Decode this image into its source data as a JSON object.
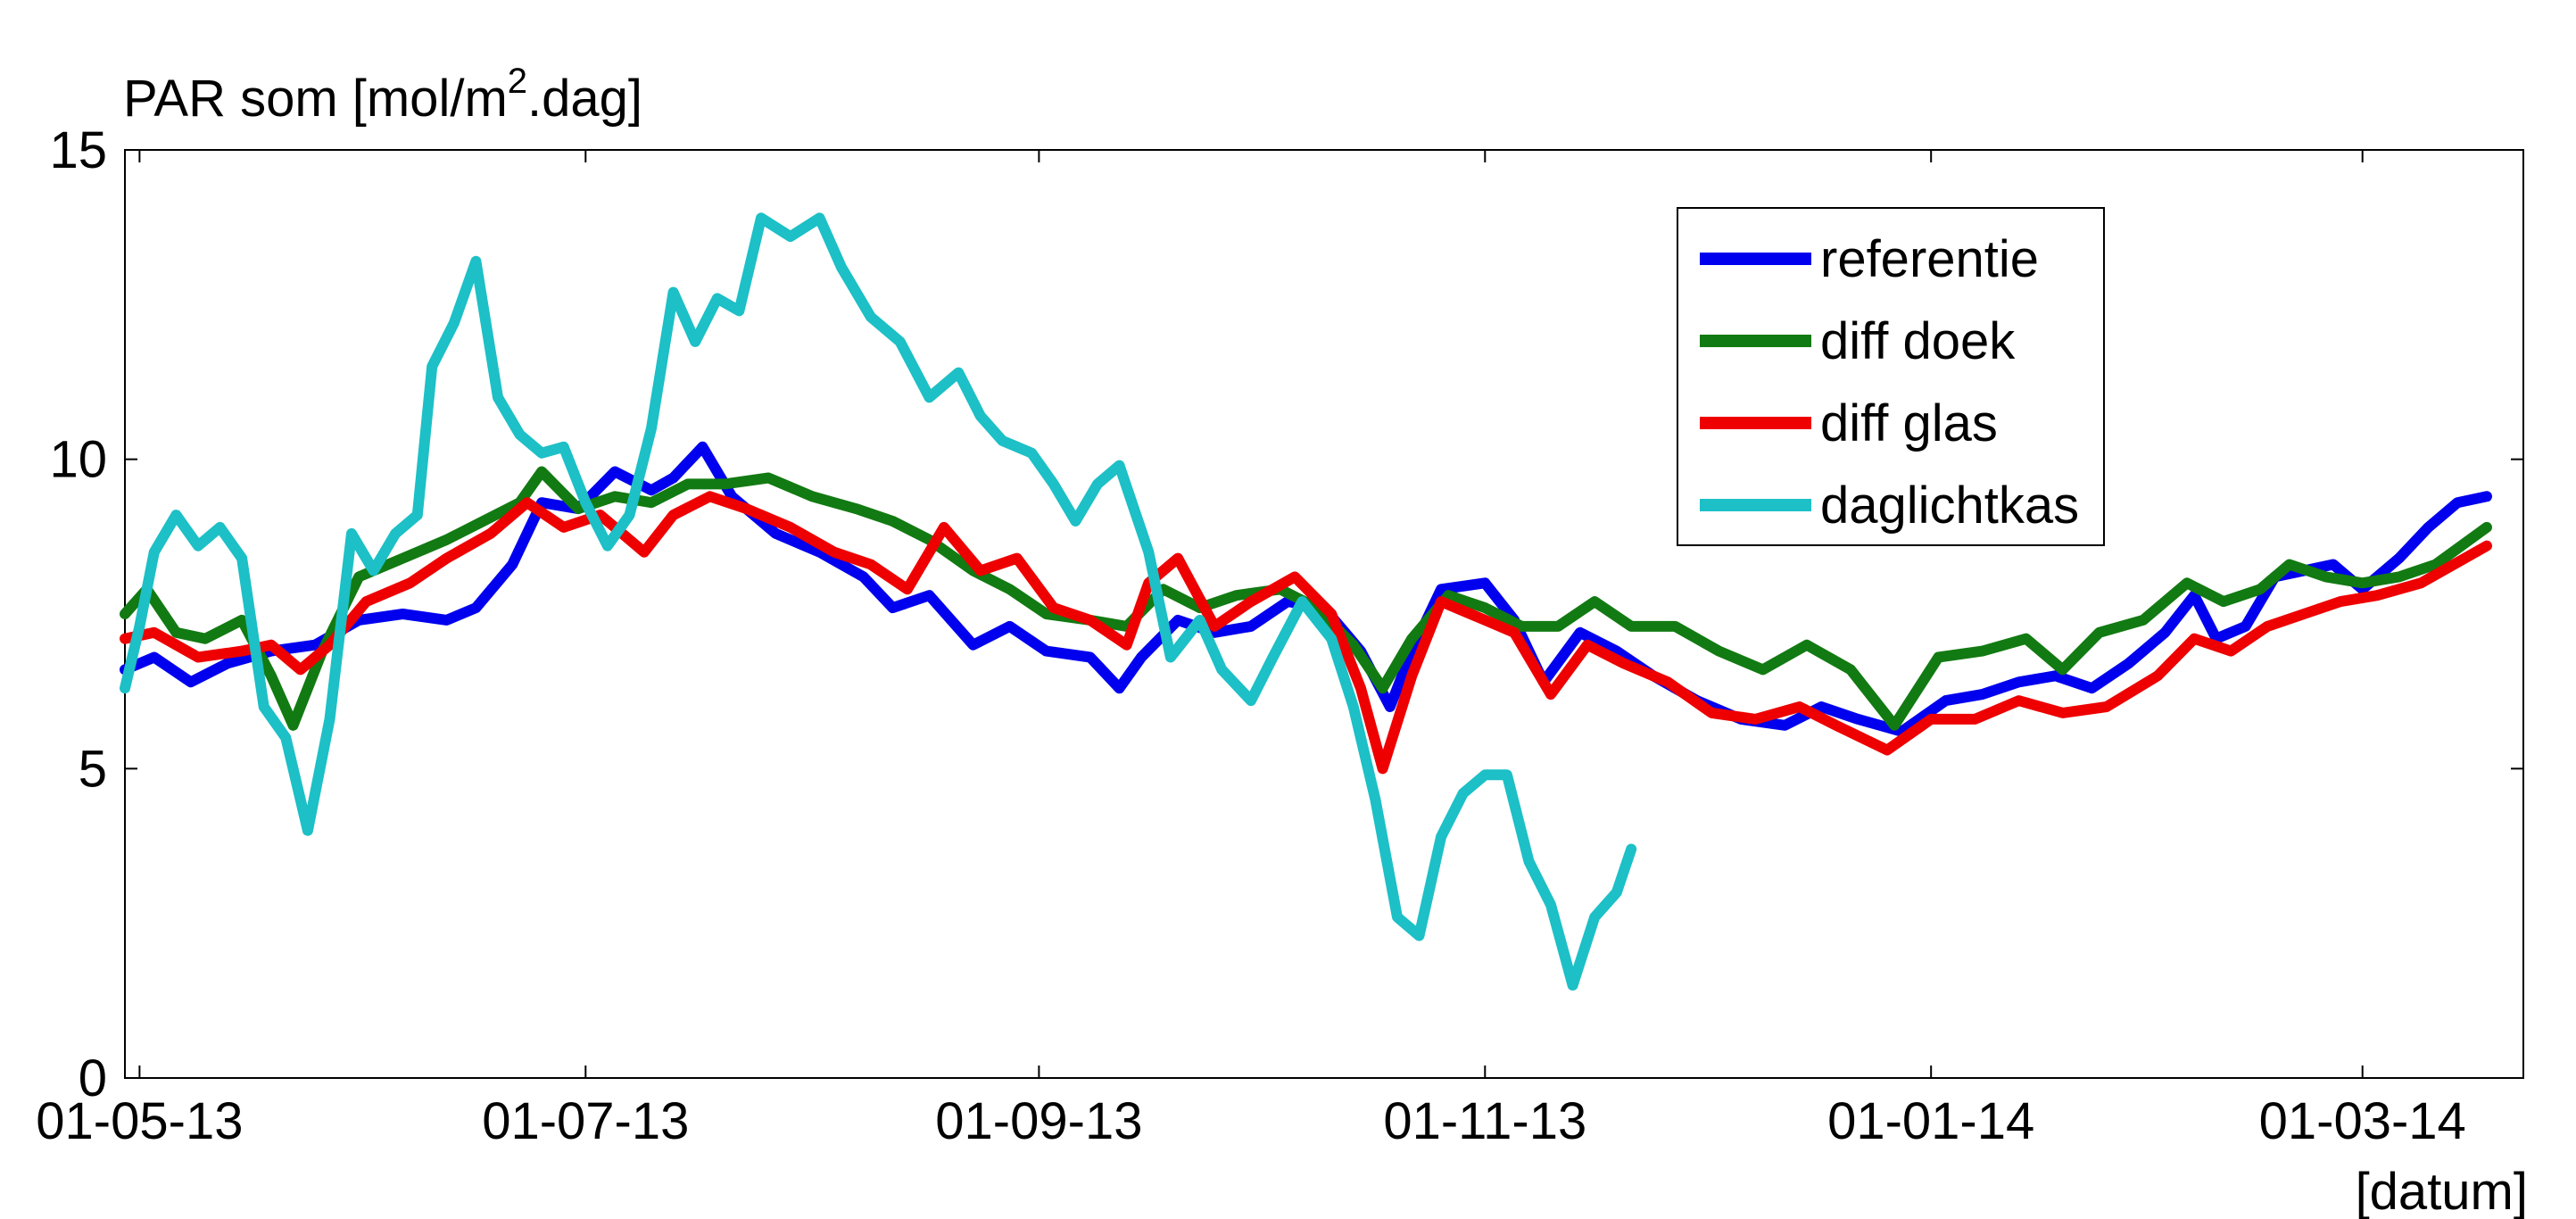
{
  "chart_data": {
    "type": "line",
    "ylabel_main": "PAR som [mol/m",
    "ylabel_sup": "2",
    "ylabel_tail": ".dag]",
    "xlabel": "[datum]",
    "ylim": [
      0,
      15
    ],
    "xlim": [
      "2013-04-29",
      "2014-03-23"
    ],
    "yticks": [
      "0",
      "5",
      "10",
      "15"
    ],
    "xticks": [
      {
        "label": "01-05-13",
        "date": "2013-05-01"
      },
      {
        "label": "01-07-13",
        "date": "2013-07-01"
      },
      {
        "label": "01-09-13",
        "date": "2013-09-01"
      },
      {
        "label": "01-11-13",
        "date": "2013-11-01"
      },
      {
        "label": "01-01-14",
        "date": "2014-01-01"
      },
      {
        "label": "01-03-14",
        "date": "2014-03-01"
      }
    ],
    "legend_position": "top-right",
    "series": [
      {
        "name": "referentie",
        "color": "#0000ee",
        "points": [
          [
            "2013-04-29",
            6.6
          ],
          [
            "2013-05-03",
            6.8
          ],
          [
            "2013-05-08",
            6.4
          ],
          [
            "2013-05-13",
            6.7
          ],
          [
            "2013-05-19",
            6.9
          ],
          [
            "2013-05-25",
            7.0
          ],
          [
            "2013-05-31",
            7.4
          ],
          [
            "2013-06-06",
            7.5
          ],
          [
            "2013-06-12",
            7.4
          ],
          [
            "2013-06-16",
            7.6
          ],
          [
            "2013-06-21",
            8.3
          ],
          [
            "2013-06-25",
            9.3
          ],
          [
            "2013-06-30",
            9.2
          ],
          [
            "2013-07-05",
            9.8
          ],
          [
            "2013-07-10",
            9.5
          ],
          [
            "2013-07-13",
            9.7
          ],
          [
            "2013-07-17",
            10.2
          ],
          [
            "2013-07-21",
            9.4
          ],
          [
            "2013-07-27",
            8.8
          ],
          [
            "2013-08-02",
            8.5
          ],
          [
            "2013-08-08",
            8.1
          ],
          [
            "2013-08-12",
            7.6
          ],
          [
            "2013-08-17",
            7.8
          ],
          [
            "2013-08-23",
            7.0
          ],
          [
            "2013-08-28",
            7.3
          ],
          [
            "2013-09-02",
            6.9
          ],
          [
            "2013-09-08",
            6.8
          ],
          [
            "2013-09-12",
            6.3
          ],
          [
            "2013-09-15",
            6.8
          ],
          [
            "2013-09-20",
            7.4
          ],
          [
            "2013-09-25",
            7.2
          ],
          [
            "2013-09-30",
            7.3
          ],
          [
            "2013-10-05",
            7.7
          ],
          [
            "2013-10-10",
            7.6
          ],
          [
            "2013-10-15",
            6.9
          ],
          [
            "2013-10-19",
            6.0
          ],
          [
            "2013-10-22",
            6.9
          ],
          [
            "2013-10-26",
            7.9
          ],
          [
            "2013-11-01",
            8.0
          ],
          [
            "2013-11-05",
            7.4
          ],
          [
            "2013-11-09",
            6.4
          ],
          [
            "2013-11-14",
            7.2
          ],
          [
            "2013-11-19",
            6.9
          ],
          [
            "2013-11-24",
            6.5
          ],
          [
            "2013-11-30",
            6.1
          ],
          [
            "2013-12-06",
            5.8
          ],
          [
            "2013-12-12",
            5.7
          ],
          [
            "2013-12-17",
            6.0
          ],
          [
            "2013-12-22",
            5.8
          ],
          [
            "2013-12-28",
            5.6
          ],
          [
            "2014-01-03",
            6.1
          ],
          [
            "2014-01-08",
            6.2
          ],
          [
            "2014-01-13",
            6.4
          ],
          [
            "2014-01-18",
            6.5
          ],
          [
            "2014-01-23",
            6.3
          ],
          [
            "2014-01-28",
            6.7
          ],
          [
            "2014-02-02",
            7.2
          ],
          [
            "2014-02-06",
            7.8
          ],
          [
            "2014-02-09",
            7.1
          ],
          [
            "2014-02-13",
            7.3
          ],
          [
            "2014-02-17",
            8.1
          ],
          [
            "2014-02-21",
            8.2
          ],
          [
            "2014-02-25",
            8.3
          ],
          [
            "2014-03-01",
            7.9
          ],
          [
            "2014-03-06",
            8.4
          ],
          [
            "2014-03-10",
            8.9
          ],
          [
            "2014-03-14",
            9.3
          ],
          [
            "2014-03-18",
            9.4
          ]
        ]
      },
      {
        "name": "diff doek",
        "color": "#127a12",
        "points": [
          [
            "2013-04-29",
            7.5
          ],
          [
            "2013-05-02",
            7.9
          ],
          [
            "2013-05-06",
            7.2
          ],
          [
            "2013-05-10",
            7.1
          ],
          [
            "2013-05-15",
            7.4
          ],
          [
            "2013-05-19",
            6.5
          ],
          [
            "2013-05-22",
            5.7
          ],
          [
            "2013-05-26",
            6.9
          ],
          [
            "2013-05-31",
            8.1
          ],
          [
            "2013-06-06",
            8.4
          ],
          [
            "2013-06-12",
            8.7
          ],
          [
            "2013-06-17",
            9.0
          ],
          [
            "2013-06-22",
            9.3
          ],
          [
            "2013-06-25",
            9.8
          ],
          [
            "2013-06-30",
            9.2
          ],
          [
            "2013-07-05",
            9.4
          ],
          [
            "2013-07-10",
            9.3
          ],
          [
            "2013-07-15",
            9.6
          ],
          [
            "2013-07-20",
            9.6
          ],
          [
            "2013-07-26",
            9.7
          ],
          [
            "2013-08-01",
            9.4
          ],
          [
            "2013-08-07",
            9.2
          ],
          [
            "2013-08-12",
            9.0
          ],
          [
            "2013-08-17",
            8.7
          ],
          [
            "2013-08-23",
            8.2
          ],
          [
            "2013-08-28",
            7.9
          ],
          [
            "2013-09-02",
            7.5
          ],
          [
            "2013-09-08",
            7.4
          ],
          [
            "2013-09-13",
            7.3
          ],
          [
            "2013-09-18",
            7.9
          ],
          [
            "2013-09-23",
            7.6
          ],
          [
            "2013-09-28",
            7.8
          ],
          [
            "2013-10-04",
            7.9
          ],
          [
            "2013-10-09",
            7.6
          ],
          [
            "2013-10-14",
            7.0
          ],
          [
            "2013-10-18",
            6.3
          ],
          [
            "2013-10-22",
            7.1
          ],
          [
            "2013-10-27",
            7.8
          ],
          [
            "2013-11-01",
            7.6
          ],
          [
            "2013-11-06",
            7.3
          ],
          [
            "2013-11-11",
            7.3
          ],
          [
            "2013-11-16",
            7.7
          ],
          [
            "2013-11-21",
            7.3
          ],
          [
            "2013-11-27",
            7.3
          ],
          [
            "2013-12-03",
            6.9
          ],
          [
            "2013-12-09",
            6.6
          ],
          [
            "2013-12-15",
            7.0
          ],
          [
            "2013-12-21",
            6.6
          ],
          [
            "2013-12-27",
            5.7
          ],
          [
            "2014-01-02",
            6.8
          ],
          [
            "2014-01-08",
            6.9
          ],
          [
            "2014-01-14",
            7.1
          ],
          [
            "2014-01-19",
            6.6
          ],
          [
            "2014-01-24",
            7.2
          ],
          [
            "2014-01-30",
            7.4
          ],
          [
            "2014-02-05",
            8.0
          ],
          [
            "2014-02-10",
            7.7
          ],
          [
            "2014-02-15",
            7.9
          ],
          [
            "2014-02-19",
            8.3
          ],
          [
            "2014-02-24",
            8.1
          ],
          [
            "2014-03-01",
            8.0
          ],
          [
            "2014-03-06",
            8.1
          ],
          [
            "2014-03-11",
            8.3
          ],
          [
            "2014-03-18",
            8.9
          ]
        ]
      },
      {
        "name": "diff glas",
        "color": "#ee0000",
        "points": [
          [
            "2013-04-29",
            7.1
          ],
          [
            "2013-05-03",
            7.2
          ],
          [
            "2013-05-09",
            6.8
          ],
          [
            "2013-05-15",
            6.9
          ],
          [
            "2013-05-19",
            7.0
          ],
          [
            "2013-05-23",
            6.6
          ],
          [
            "2013-05-27",
            7.0
          ],
          [
            "2013-06-01",
            7.7
          ],
          [
            "2013-06-07",
            8.0
          ],
          [
            "2013-06-12",
            8.4
          ],
          [
            "2013-06-18",
            8.8
          ],
          [
            "2013-06-23",
            9.3
          ],
          [
            "2013-06-28",
            8.9
          ],
          [
            "2013-07-03",
            9.1
          ],
          [
            "2013-07-09",
            8.5
          ],
          [
            "2013-07-13",
            9.1
          ],
          [
            "2013-07-18",
            9.4
          ],
          [
            "2013-07-23",
            9.2
          ],
          [
            "2013-07-29",
            8.9
          ],
          [
            "2013-08-04",
            8.5
          ],
          [
            "2013-08-09",
            8.3
          ],
          [
            "2013-08-14",
            7.9
          ],
          [
            "2013-08-19",
            8.9
          ],
          [
            "2013-08-24",
            8.2
          ],
          [
            "2013-08-29",
            8.4
          ],
          [
            "2013-09-03",
            7.6
          ],
          [
            "2013-09-08",
            7.4
          ],
          [
            "2013-09-13",
            7.0
          ],
          [
            "2013-09-16",
            8.0
          ],
          [
            "2013-09-20",
            8.4
          ],
          [
            "2013-09-25",
            7.3
          ],
          [
            "2013-09-30",
            7.7
          ],
          [
            "2013-10-06",
            8.1
          ],
          [
            "2013-10-11",
            7.5
          ],
          [
            "2013-10-15",
            6.3
          ],
          [
            "2013-10-18",
            5.0
          ],
          [
            "2013-10-22",
            6.5
          ],
          [
            "2013-10-26",
            7.7
          ],
          [
            "2013-11-01",
            7.4
          ],
          [
            "2013-11-05",
            7.2
          ],
          [
            "2013-11-10",
            6.2
          ],
          [
            "2013-11-15",
            7.0
          ],
          [
            "2013-11-20",
            6.7
          ],
          [
            "2013-11-26",
            6.4
          ],
          [
            "2013-12-02",
            5.9
          ],
          [
            "2013-12-08",
            5.8
          ],
          [
            "2013-12-14",
            6.0
          ],
          [
            "2013-12-19",
            5.7
          ],
          [
            "2013-12-26",
            5.3
          ],
          [
            "2014-01-01",
            5.8
          ],
          [
            "2014-01-07",
            5.8
          ],
          [
            "2014-01-13",
            6.1
          ],
          [
            "2014-01-19",
            5.9
          ],
          [
            "2014-01-25",
            6.0
          ],
          [
            "2014-02-01",
            6.5
          ],
          [
            "2014-02-06",
            7.1
          ],
          [
            "2014-02-11",
            6.9
          ],
          [
            "2014-02-16",
            7.3
          ],
          [
            "2014-02-21",
            7.5
          ],
          [
            "2014-02-26",
            7.7
          ],
          [
            "2014-03-03",
            7.8
          ],
          [
            "2014-03-09",
            8.0
          ],
          [
            "2014-03-18",
            8.6
          ]
        ]
      },
      {
        "name": "daglichtkas",
        "color": "#1cc0c6",
        "points": [
          [
            "2013-04-29",
            6.3
          ],
          [
            "2013-05-01",
            7.3
          ],
          [
            "2013-05-03",
            8.5
          ],
          [
            "2013-05-06",
            9.1
          ],
          [
            "2013-05-09",
            8.6
          ],
          [
            "2013-05-12",
            8.9
          ],
          [
            "2013-05-15",
            8.4
          ],
          [
            "2013-05-18",
            6.0
          ],
          [
            "2013-05-21",
            5.5
          ],
          [
            "2013-05-24",
            4.0
          ],
          [
            "2013-05-27",
            5.8
          ],
          [
            "2013-05-30",
            8.8
          ],
          [
            "2013-06-02",
            8.2
          ],
          [
            "2013-06-05",
            8.8
          ],
          [
            "2013-06-08",
            9.1
          ],
          [
            "2013-06-10",
            11.5
          ],
          [
            "2013-06-13",
            12.2
          ],
          [
            "2013-06-16",
            13.2
          ],
          [
            "2013-06-19",
            11.0
          ],
          [
            "2013-06-22",
            10.4
          ],
          [
            "2013-06-25",
            10.1
          ],
          [
            "2013-06-28",
            10.2
          ],
          [
            "2013-07-01",
            9.3
          ],
          [
            "2013-07-04",
            8.6
          ],
          [
            "2013-07-07",
            9.1
          ],
          [
            "2013-07-10",
            10.5
          ],
          [
            "2013-07-13",
            12.7
          ],
          [
            "2013-07-16",
            11.9
          ],
          [
            "2013-07-19",
            12.6
          ],
          [
            "2013-07-22",
            12.4
          ],
          [
            "2013-07-25",
            13.9
          ],
          [
            "2013-07-29",
            13.6
          ],
          [
            "2013-08-02",
            13.9
          ],
          [
            "2013-08-05",
            13.1
          ],
          [
            "2013-08-09",
            12.3
          ],
          [
            "2013-08-13",
            11.9
          ],
          [
            "2013-08-17",
            11.0
          ],
          [
            "2013-08-21",
            11.4
          ],
          [
            "2013-08-24",
            10.7
          ],
          [
            "2013-08-27",
            10.3
          ],
          [
            "2013-08-31",
            10.1
          ],
          [
            "2013-09-03",
            9.6
          ],
          [
            "2013-09-06",
            9.0
          ],
          [
            "2013-09-09",
            9.6
          ],
          [
            "2013-09-12",
            9.9
          ],
          [
            "2013-09-16",
            8.5
          ],
          [
            "2013-09-19",
            6.8
          ],
          [
            "2013-09-23",
            7.4
          ],
          [
            "2013-09-26",
            6.6
          ],
          [
            "2013-09-30",
            6.1
          ],
          [
            "2013-10-03",
            6.8
          ],
          [
            "2013-10-07",
            7.7
          ],
          [
            "2013-10-11",
            7.1
          ],
          [
            "2013-10-14",
            6.0
          ],
          [
            "2013-10-17",
            4.5
          ],
          [
            "2013-10-20",
            2.6
          ],
          [
            "2013-10-23",
            2.3
          ],
          [
            "2013-10-26",
            3.9
          ],
          [
            "2013-10-29",
            4.6
          ],
          [
            "2013-11-01",
            4.9
          ],
          [
            "2013-11-04",
            4.9
          ],
          [
            "2013-11-07",
            3.5
          ],
          [
            "2013-11-10",
            2.8
          ],
          [
            "2013-11-13",
            1.5
          ],
          [
            "2013-11-16",
            2.6
          ],
          [
            "2013-11-19",
            3.0
          ],
          [
            "2013-11-21",
            3.7
          ]
        ]
      }
    ]
  }
}
